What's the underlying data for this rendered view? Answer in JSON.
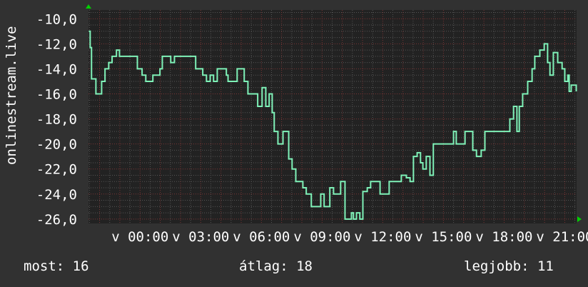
{
  "chart_data": {
    "type": "line",
    "title": "",
    "ylabel": "onlinestream.live",
    "xlabel": "",
    "ylim": [
      -26.35,
      -9.3
    ],
    "xlim": [
      "21:27",
      "21:35"
    ],
    "yticks": [
      -10,
      -12,
      -14,
      -16,
      -18,
      -20,
      -22,
      -24,
      -26
    ],
    "ytick_labels": [
      "-10,0",
      "-12,0",
      "-14,0",
      "-16,0",
      "-18,0",
      "-20,0",
      "-22,0",
      "-24,0",
      "-26,0"
    ],
    "xticks": [
      "00:00",
      "03:00",
      "06:00",
      "09:00",
      "12:00",
      "15:00",
      "18:00",
      "21:00"
    ],
    "xtick_labels": [
      "v 00:00",
      "v 03:00",
      "v 06:00",
      "v 09:00",
      "v 12:00",
      "v 15:00",
      "v 18:00",
      "v 21:00"
    ],
    "grid": true,
    "line_color": "#7ff2b8",
    "series": [
      {
        "x": [
          "21:28",
          "21:32",
          "21:36",
          "21:49",
          "21:59",
          "22:06",
          "22:16",
          "22:27",
          "22:37",
          "22:50",
          "22:59",
          "23:45",
          "23:52",
          "00:06",
          "00:17",
          "00:28",
          "00:38",
          "00:49",
          "00:59",
          "01:06",
          "01:31",
          "01:42",
          "02:39",
          "02:45",
          "03:06",
          "03:17",
          "03:28",
          "03:38",
          "03:49",
          "03:59",
          "04:16",
          "04:21",
          "04:42",
          "04:48",
          "05:03",
          "05:09",
          "05:20",
          "05:45",
          "05:49",
          "06:02",
          "06:13",
          "06:23",
          "06:32",
          "06:38",
          "06:49",
          "07:04",
          "07:16",
          "07:21",
          "07:31",
          "07:42",
          "08:03",
          "08:13",
          "08:28",
          "08:45",
          "08:56",
          "09:06",
          "09:17",
          "09:23",
          "09:34",
          "09:49",
          "09:55",
          "10:04",
          "10:08",
          "10:21",
          "10:27",
          "10:33",
          "10:42",
          "10:52",
          "11:01",
          "11:14",
          "11:24",
          "11:45",
          "11:52",
          "12:06",
          "12:19",
          "12:49",
          "12:55",
          "13:10",
          "13:21",
          "13:31",
          "13:42",
          "13:52",
          "13:59",
          "14:09",
          "14:20",
          "14:30",
          "15:21",
          "15:30",
          "15:38",
          "15:59",
          "16:04",
          "16:21",
          "16:27",
          "16:38",
          "16:52",
          "17:03",
          "18:11",
          "18:17",
          "18:28",
          "18:38",
          "18:45",
          "18:55",
          "19:10",
          "19:23",
          "19:31",
          "19:46",
          "19:59",
          "20:09",
          "20:16",
          "20:26",
          "20:39",
          "20:52",
          "21:00",
          "21:09",
          "21:13",
          "21:19",
          "21:30",
          "21:34"
        ],
        "values": [
          -11,
          -12.3,
          -14.8,
          -16,
          -16,
          -15,
          -14,
          -13.5,
          -13,
          -12.5,
          -13,
          -13,
          -14,
          -14.5,
          -15,
          -15,
          -14.5,
          -14.5,
          -14,
          -13,
          -13.5,
          -13,
          -13,
          -14,
          -14.5,
          -15,
          -14.5,
          -15,
          -14,
          -14,
          -14.5,
          -15,
          -15,
          -14,
          -14,
          -15,
          -16,
          -16,
          -17,
          -15.5,
          -17,
          -16,
          -17.5,
          -19,
          -20,
          -19,
          -19,
          -21.2,
          -22,
          -23,
          -23.5,
          -24,
          -25,
          -25,
          -24,
          -25,
          -25,
          -23.5,
          -24,
          -24,
          -23,
          -23,
          -26,
          -26,
          -25.5,
          -26,
          -25.5,
          -26,
          -23.8,
          -23.5,
          -23,
          -23,
          -24,
          -24,
          -23,
          -23,
          -22.5,
          -22.7,
          -23,
          -21,
          -20.7,
          -21.5,
          -22,
          -21,
          -22.5,
          -20,
          -20,
          -19,
          -20,
          -20,
          -19,
          -19,
          -20.5,
          -21,
          -20.5,
          -19,
          -19,
          -18,
          -17,
          -19,
          -17,
          -16,
          -15,
          -14,
          -13,
          -12.5,
          -12,
          -13.5,
          -14.5,
          -12.7,
          -13.5,
          -14,
          -15,
          -14.5,
          -15.8,
          -15.3,
          -15.3,
          -15.8
        ]
      }
    ]
  },
  "legend": {
    "current": "most: 16",
    "average": "átlag: 18",
    "max": "legjobb: 11"
  }
}
